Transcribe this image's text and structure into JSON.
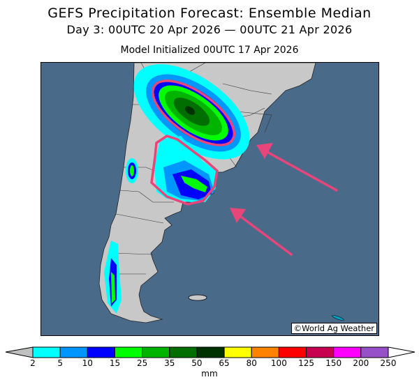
{
  "header": {
    "title": "GEFS Precipitation Forecast: Ensemble Median",
    "subtitle": "Day 3: 00UTC 20 Apr 2026 — 00UTC 21 Apr 2026",
    "initialized": "Model Initialized 00UTC 17 Apr 2026"
  },
  "map": {
    "watermark": "©World Ag Weather",
    "colors": {
      "ocean": "#4a6a8a",
      "land": "#c8c8c8",
      "annotation": "#e8457a"
    }
  },
  "colorbar": {
    "unit": "mm",
    "below_color": "#c0c0c0",
    "above_color": "#ffffff",
    "labels": [
      "2",
      "5",
      "10",
      "15",
      "25",
      "35",
      "50",
      "65",
      "80",
      "100",
      "125",
      "150",
      "200",
      "250"
    ],
    "colors": [
      "#00ffff",
      "#0096ff",
      "#0000ff",
      "#00ff00",
      "#00b400",
      "#006e00",
      "#003200",
      "#ffff00",
      "#ff8200",
      "#ff0000",
      "#c80050",
      "#ff00ff",
      "#9650c8"
    ]
  }
}
